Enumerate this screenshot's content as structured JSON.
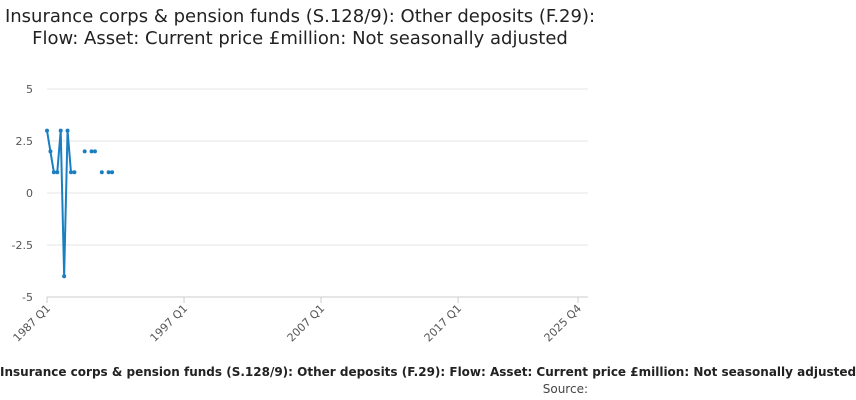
{
  "chart_data": {
    "type": "line",
    "title": "Insurance corps & pension funds (S.128/9): Other deposits (F.29): Flow: Asset: Current price £million: Not seasonally adjusted",
    "xlabel": "",
    "ylabel": "",
    "ylim": [
      -5,
      5
    ],
    "yticks": [
      "5",
      "2.5",
      "0",
      "-2.5",
      "-5"
    ],
    "ytick_values": [
      5,
      2.5,
      0,
      -2.5,
      -5
    ],
    "xticks": [
      "1987 Q1",
      "1997 Q1",
      "2007 Q1",
      "2017 Q1",
      "2025 Q4"
    ],
    "xtick_positions": [
      1987.0,
      1997.0,
      2007.0,
      2017.0,
      2025.75
    ],
    "xlim": [
      1987.0,
      2025.75
    ],
    "grid": true,
    "color": "#1a7fc1",
    "series": [
      {
        "name": "Insurance corps & pension funds (S.128/9): Other deposits (F.29): Flow: Asset: Current price £million: Not seasonally adjusted",
        "points": [
          {
            "x": "1987 Q1",
            "t": 1987.0,
            "y": 3
          },
          {
            "x": "1987 Q2",
            "t": 1987.25,
            "y": 2
          },
          {
            "x": "1987 Q3",
            "t": 1987.5,
            "y": 1
          },
          {
            "x": "1987 Q4",
            "t": 1987.75,
            "y": 1
          },
          {
            "x": "1988 Q1",
            "t": 1988.0,
            "y": 3
          },
          {
            "x": "1988 Q2",
            "t": 1988.25,
            "y": -4
          },
          {
            "x": "1988 Q3",
            "t": 1988.5,
            "y": 3
          },
          {
            "x": "1988 Q4",
            "t": 1988.75,
            "y": 1
          },
          {
            "x": "1989 Q1",
            "t": 1989.0,
            "y": 1
          },
          {
            "x": "1989 Q2",
            "t": 1989.25,
            "y": null
          },
          {
            "x": "1989 Q3",
            "t": 1989.5,
            "y": null
          },
          {
            "x": "1989 Q4",
            "t": 1989.75,
            "y": 2
          },
          {
            "x": "1990 Q1",
            "t": 1990.0,
            "y": null
          },
          {
            "x": "1990 Q2",
            "t": 1990.25,
            "y": 2
          },
          {
            "x": "1990 Q3",
            "t": 1990.5,
            "y": 2
          },
          {
            "x": "1990 Q4",
            "t": 1990.75,
            "y": null
          },
          {
            "x": "1991 Q1",
            "t": 1991.0,
            "y": 1
          },
          {
            "x": "1991 Q2",
            "t": 1991.25,
            "y": null
          },
          {
            "x": "1991 Q3",
            "t": 1991.5,
            "y": 1
          },
          {
            "x": "1991 Q4",
            "t": 1991.75,
            "y": 1
          }
        ]
      }
    ]
  },
  "footer": {
    "series_label": "Insurance corps & pension funds (S.128/9): Other deposits (F.29): Flow: Asset: Current price £million: Not seasonally adjusted",
    "source": "Source:"
  }
}
